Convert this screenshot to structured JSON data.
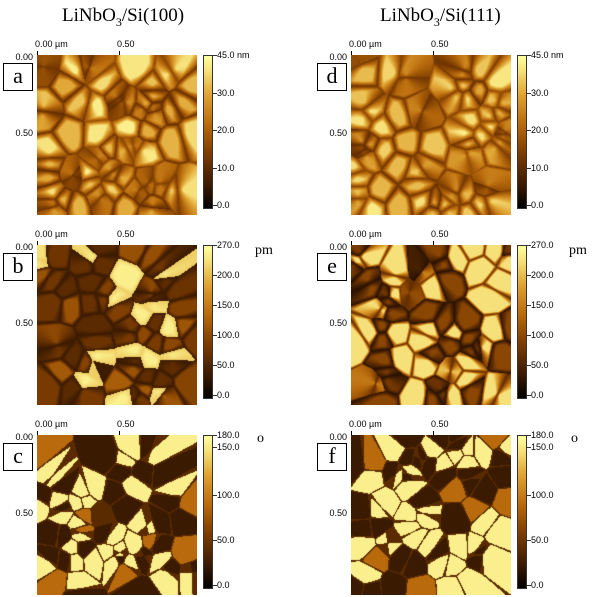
{
  "columns": {
    "left": {
      "formula": "LiNbO",
      "sub": "3",
      "rest": "/Si(100)"
    },
    "right": {
      "formula": "LiNbO",
      "sub": "3",
      "rest": "/Si(111)"
    }
  },
  "axes": {
    "x0": "0.00 µm",
    "x1": "0.50",
    "y0": "0.00",
    "y1": "0.50"
  },
  "panels": [
    {
      "id": "a",
      "label": "a",
      "colorbar": [
        "45.0 nm",
        "30.0",
        "20.0",
        "10.0",
        "0.0"
      ],
      "unit": ""
    },
    {
      "id": "b",
      "label": "b",
      "colorbar": [
        "270.0",
        "200.0",
        "150.0",
        "100.0",
        "50.0",
        "0.0"
      ],
      "unit": "pm"
    },
    {
      "id": "c",
      "label": "c",
      "colorbar": [
        "180.0",
        "150.0",
        "100.0",
        "50.0",
        "0.0"
      ],
      "unit": "o"
    },
    {
      "id": "d",
      "label": "d",
      "colorbar": [
        "45.0 nm",
        "30.0",
        "20.0",
        "10.0",
        "0.0"
      ],
      "unit": ""
    },
    {
      "id": "e",
      "label": "e",
      "colorbar": [
        "270.0",
        "200.0",
        "150.0",
        "100.0",
        "50.0",
        "0.0"
      ],
      "unit": "pm"
    },
    {
      "id": "f",
      "label": "f",
      "colorbar": [
        "180.0",
        "150.0",
        "100.0",
        "50.0",
        "0.0"
      ],
      "unit": "o"
    }
  ],
  "colors": {
    "low": "#000000",
    "mid": "#b86a0c",
    "high": "#ffffa0"
  }
}
